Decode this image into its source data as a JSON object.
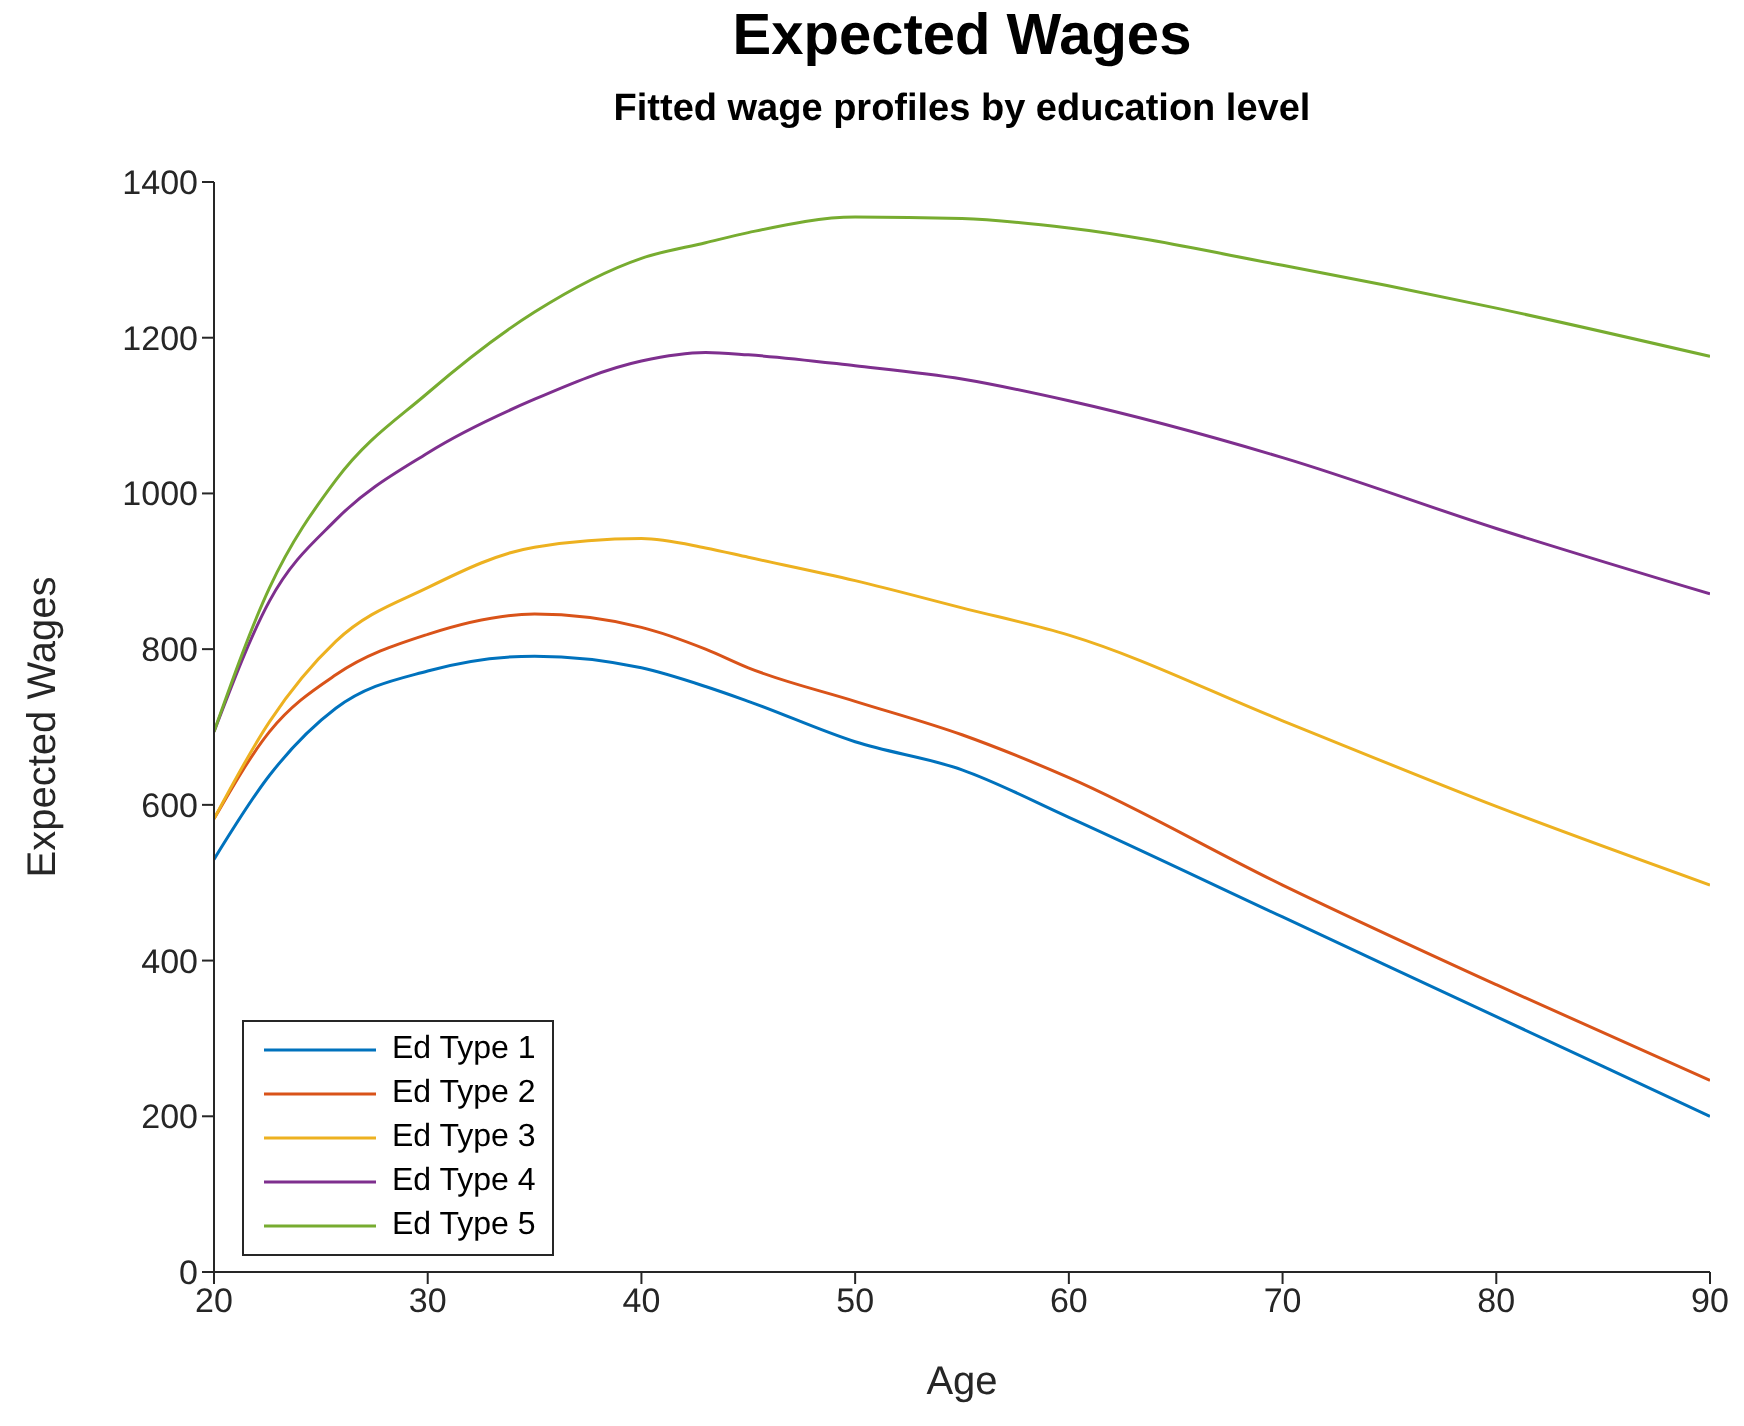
{
  "chart_data": {
    "type": "line",
    "title": "Expected Wages",
    "subtitle": "Fitted wage profiles by education level",
    "xlabel": "Age",
    "ylabel": "Expected Wages",
    "x": [
      20,
      22.6,
      25.7,
      30,
      35,
      40,
      43,
      45,
      50,
      55,
      60,
      70,
      80,
      90
    ],
    "series": [
      {
        "name": "Ed Type 1",
        "color": "#0072bd",
        "values": [
          530,
          638,
          724,
          772,
          791,
          776,
          752,
          733,
          681,
          645,
          584,
          456,
          328,
          200
        ]
      },
      {
        "name": "Ed Type 2",
        "color": "#d95319",
        "values": [
          582,
          694,
          767,
          819,
          845,
          828,
          800,
          776,
          733,
          690,
          635,
          497,
          369,
          246
        ]
      },
      {
        "name": "Ed Type 3",
        "color": "#edb120",
        "values": [
          582,
          707,
          810,
          879,
          931,
          942,
          930,
          918,
          888,
          853,
          818,
          708,
          598,
          497
        ]
      },
      {
        "name": "Ed Type 4",
        "color": "#7e2f8e",
        "values": [
          694,
          862,
          966,
          1052,
          1121,
          1170,
          1181,
          1178,
          1164,
          1147,
          1119,
          1046,
          955,
          871
        ]
      },
      {
        "name": "Ed Type 5",
        "color": "#77ac30",
        "values": [
          694,
          879,
          1017,
          1129,
          1233,
          1302,
          1322,
          1335,
          1355,
          1353,
          1341,
          1293,
          1238,
          1176
        ]
      }
    ],
    "xlim": [
      20,
      90
    ],
    "xticks": [
      20,
      30,
      40,
      50,
      60,
      70,
      80,
      90
    ],
    "ylim": [
      0,
      1400
    ],
    "yticks": [
      0,
      200,
      400,
      600,
      800,
      1000,
      1200,
      1400
    ],
    "grid": false,
    "legend": "bottom left",
    "marker": "none",
    "line_style": "solid"
  }
}
